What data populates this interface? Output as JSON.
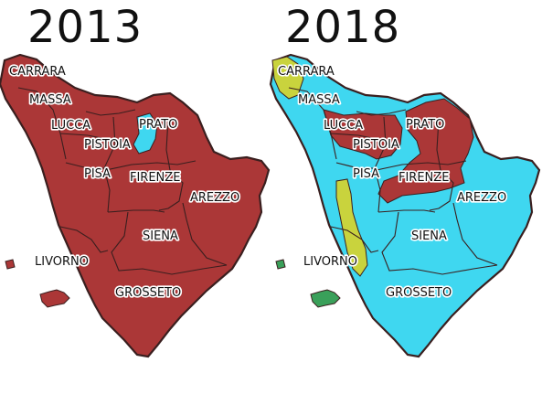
{
  "maps": [
    {
      "year": "2013",
      "colors": {
        "base": "#ab3737",
        "prato": "#3fd7f0",
        "sea": "#ffffff",
        "island": "#ab3737"
      },
      "labels": {
        "carrara": "CARRARA",
        "massa": "MASSA",
        "lucca": "LUCCA",
        "prato": "PRATO",
        "pistoia": "PISTOIA",
        "pisa": "PISA",
        "firenze": "FIRENZE",
        "arezzo": "AREZZO",
        "siena": "SIENA",
        "livorno": "LIVORNO",
        "grosseto": "GROSSETO"
      }
    },
    {
      "year": "2018",
      "colors": {
        "base": "#3fd7f0",
        "left": "#ab3737",
        "right": "#3fd7f0",
        "yellow": "#c9d33d",
        "island": "#3aa05a"
      },
      "labels": {
        "carrara": "CARRARA",
        "massa": "MASSA",
        "lucca": "LUCCA",
        "prato": "PRATO",
        "pistoia": "PISTOIA",
        "pisa": "PISA",
        "firenze": "FIRENZE",
        "arezzo": "AREZZO",
        "siena": "SIENA",
        "livorno": "LIVORNO",
        "grosseto": "GROSSETO"
      }
    }
  ],
  "line_color": "#3a1f1f"
}
